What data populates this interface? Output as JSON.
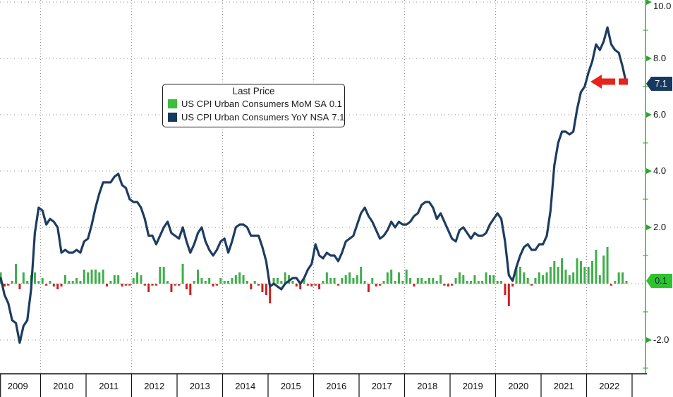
{
  "legend": {
    "title": "Last Price",
    "items": [
      {
        "label": "US CPI Urban Consumers MoM SA",
        "value": "0.1",
        "color": "#3dbd3d"
      },
      {
        "label": "US CPI Urban Consumers YoY NSA",
        "value": "7.1",
        "color": "#17395f"
      }
    ]
  },
  "y_axis": {
    "axis_color": "#30a330",
    "label_color": "#111111",
    "major_ticks": [
      10.0,
      8.0,
      6.0,
      4.0,
      2.0,
      -2.0
    ],
    "major_labels": [
      "10.0",
      "8.0",
      "6.0",
      "4.0",
      "2.0",
      "-2.0"
    ],
    "minor_ticks": [
      9,
      7,
      5,
      3,
      1,
      -1,
      -3
    ],
    "last_price_badges": [
      {
        "series": "yoy",
        "value": 7.1,
        "label": "7.1",
        "bg": "#17395f",
        "fg": "#ffffff"
      },
      {
        "series": "mom",
        "value": 0.1,
        "label": "0.1",
        "bg": "#2fc32f",
        "fg": "#0e2230"
      }
    ]
  },
  "x_axis": {
    "years": [
      "2009",
      "2010",
      "2011",
      "2012",
      "2013",
      "2014",
      "2015",
      "2016",
      "2017",
      "2018",
      "2019",
      "2020",
      "2021",
      "2022"
    ],
    "label_color": "#111111"
  },
  "annotation_arrow": {
    "color": "#e8231a",
    "points_at_value": 7.1,
    "direction": "left",
    "style": "dashed"
  },
  "chart_data": {
    "type": "line+bar",
    "x_start": "2009-01",
    "x_end": "2022-11",
    "x_freq": "monthly",
    "ylim": [
      -3.2,
      10.08
    ],
    "grid": {
      "h_values": [
        -2,
        0,
        2,
        4,
        6,
        8,
        10
      ],
      "v_years": [
        2010,
        2012,
        2014,
        2016,
        2018,
        2020,
        2022
      ],
      "color": "#8f8f8f"
    },
    "series": [
      {
        "name": "US CPI Urban Consumers YoY NSA",
        "type": "line",
        "color": "#1d3c60",
        "last_value": 7.1,
        "values": [
          0.0,
          0.2,
          -0.4,
          -0.7,
          -1.3,
          -1.4,
          -2.1,
          -1.5,
          -1.3,
          -0.2,
          1.8,
          2.7,
          2.6,
          2.1,
          2.3,
          2.2,
          2.0,
          1.1,
          1.2,
          1.1,
          1.1,
          1.2,
          1.1,
          1.5,
          1.6,
          2.1,
          2.7,
          3.2,
          3.6,
          3.6,
          3.6,
          3.8,
          3.9,
          3.5,
          3.4,
          3.0,
          2.9,
          2.9,
          2.7,
          2.3,
          1.7,
          1.7,
          1.4,
          1.7,
          2.0,
          2.2,
          1.8,
          1.7,
          1.6,
          2.0,
          1.5,
          1.1,
          1.4,
          1.8,
          2.0,
          1.5,
          1.2,
          1.0,
          1.2,
          1.5,
          1.6,
          1.1,
          1.5,
          2.0,
          2.1,
          2.1,
          2.0,
          1.7,
          1.7,
          1.7,
          1.3,
          0.8,
          -0.1,
          0.0,
          -0.1,
          -0.2,
          0.0,
          0.1,
          0.2,
          0.2,
          0.0,
          0.2,
          0.5,
          0.7,
          1.4,
          1.0,
          0.9,
          1.1,
          1.0,
          1.0,
          0.8,
          1.1,
          1.5,
          1.6,
          1.7,
          2.1,
          2.5,
          2.7,
          2.4,
          2.2,
          1.9,
          1.6,
          1.7,
          1.9,
          2.2,
          2.0,
          2.2,
          2.1,
          2.1,
          2.2,
          2.4,
          2.5,
          2.8,
          2.9,
          2.9,
          2.7,
          2.3,
          2.5,
          2.2,
          1.9,
          1.6,
          1.5,
          1.9,
          2.0,
          1.8,
          1.6,
          1.8,
          1.7,
          1.7,
          1.8,
          2.1,
          2.3,
          2.5,
          2.3,
          1.5,
          0.3,
          0.1,
          0.6,
          1.0,
          1.3,
          1.4,
          1.2,
          1.2,
          1.4,
          1.4,
          1.7,
          2.6,
          4.2,
          5.0,
          5.4,
          5.4,
          5.3,
          5.4,
          6.2,
          6.8,
          7.0,
          7.5,
          7.9,
          8.5,
          8.3,
          8.6,
          9.1,
          8.5,
          8.3,
          8.2,
          7.7,
          7.1
        ]
      },
      {
        "name": "US CPI Urban Consumers MoM SA",
        "type": "bar",
        "color_positive": "#3fae4a",
        "color_negative": "#cc2020",
        "last_value": 0.1,
        "values": [
          0.3,
          0.4,
          -0.1,
          0.0,
          0.1,
          0.7,
          -0.2,
          0.4,
          0.1,
          0.3,
          0.4,
          0.1,
          0.2,
          0.0,
          0.1,
          -0.1,
          -0.2,
          -0.1,
          0.3,
          0.1,
          0.1,
          0.2,
          0.1,
          0.5,
          0.4,
          0.5,
          0.5,
          0.4,
          0.5,
          -0.1,
          0.1,
          0.3,
          0.3,
          -0.1,
          0.0,
          0.0,
          0.2,
          0.4,
          0.3,
          0.0,
          -0.3,
          0.0,
          0.0,
          0.6,
          0.6,
          0.1,
          -0.3,
          0.0,
          0.0,
          0.7,
          -0.2,
          -0.4,
          0.1,
          0.5,
          0.2,
          0.1,
          0.2,
          -0.1,
          0.0,
          0.2,
          0.1,
          0.1,
          0.2,
          0.3,
          0.4,
          0.3,
          0.1,
          -0.2,
          0.1,
          0.0,
          -0.3,
          -0.4,
          -0.7,
          0.2,
          0.2,
          0.1,
          0.4,
          0.3,
          0.1,
          -0.1,
          -0.2,
          0.2,
          0.0,
          -0.1,
          0.0,
          -0.2,
          0.1,
          0.4,
          0.2,
          0.2,
          0.0,
          0.2,
          0.3,
          0.4,
          0.2,
          0.3,
          0.6,
          0.1,
          -0.3,
          0.2,
          -0.1,
          0.0,
          0.1,
          0.4,
          0.5,
          0.1,
          0.4,
          0.1,
          0.5,
          0.2,
          -0.1,
          0.2,
          0.2,
          0.1,
          0.2,
          0.2,
          0.1,
          0.3,
          0.0,
          -0.1,
          0.0,
          0.2,
          0.4,
          0.3,
          0.1,
          0.1,
          0.3,
          0.1,
          0.1,
          0.4,
          0.3,
          0.3,
          0.1,
          0.1,
          -0.4,
          -0.8,
          -0.1,
          0.6,
          0.6,
          0.4,
          0.2,
          0.0,
          0.2,
          0.4,
          0.3,
          0.4,
          0.6,
          0.8,
          0.6,
          0.9,
          0.5,
          0.3,
          0.4,
          0.9,
          0.8,
          0.6,
          0.6,
          0.8,
          1.2,
          0.3,
          1.0,
          1.3,
          0.0,
          0.1,
          0.4,
          0.4,
          0.1
        ]
      }
    ]
  }
}
